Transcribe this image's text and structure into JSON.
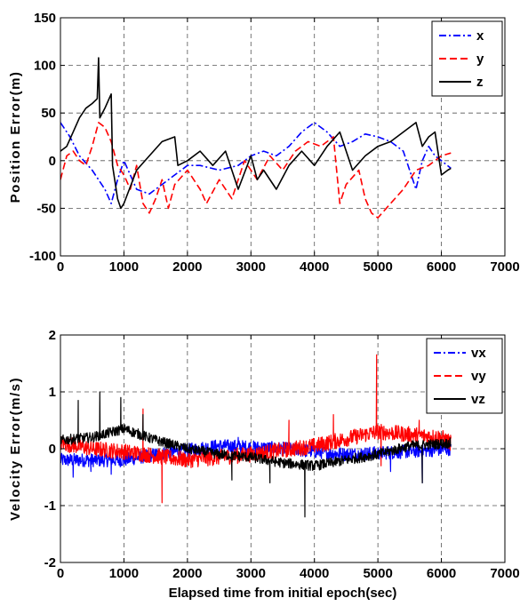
{
  "chart_data": [
    {
      "type": "line",
      "ylabel": "Position Error(m)",
      "xlabel": "",
      "xlim": [
        0,
        7000
      ],
      "ylim": [
        -100,
        150
      ],
      "xticks": [
        "0",
        "1000",
        "2000",
        "3000",
        "4000",
        "5000",
        "6000",
        "7000"
      ],
      "yticks": [
        "-100",
        "-50",
        "0",
        "50",
        "100",
        "150"
      ],
      "grid": true,
      "legend_position": "top-right",
      "series": [
        {
          "name": "x",
          "color": "#0000ff",
          "style": "dash-dot",
          "points": [
            [
              0,
              40
            ],
            [
              150,
              25
            ],
            [
              300,
              5
            ],
            [
              500,
              -10
            ],
            [
              700,
              -30
            ],
            [
              800,
              -45
            ],
            [
              900,
              -20
            ],
            [
              1000,
              0
            ],
            [
              1100,
              -15
            ],
            [
              1200,
              -30
            ],
            [
              1400,
              -35
            ],
            [
              1600,
              -25
            ],
            [
              1800,
              -15
            ],
            [
              2000,
              -5
            ],
            [
              2200,
              -5
            ],
            [
              2500,
              -10
            ],
            [
              2800,
              -5
            ],
            [
              3000,
              5
            ],
            [
              3200,
              10
            ],
            [
              3400,
              5
            ],
            [
              3600,
              15
            ],
            [
              3800,
              30
            ],
            [
              4000,
              40
            ],
            [
              4200,
              30
            ],
            [
              4400,
              15
            ],
            [
              4600,
              20
            ],
            [
              4800,
              28
            ],
            [
              5000,
              25
            ],
            [
              5200,
              20
            ],
            [
              5400,
              10
            ],
            [
              5600,
              -30
            ],
            [
              5700,
              0
            ],
            [
              5800,
              15
            ],
            [
              5900,
              5
            ],
            [
              6000,
              0
            ],
            [
              6150,
              -8
            ]
          ]
        },
        {
          "name": "y",
          "color": "#ff0000",
          "style": "dash",
          "points": [
            [
              0,
              -20
            ],
            [
              100,
              5
            ],
            [
              200,
              10
            ],
            [
              300,
              0
            ],
            [
              400,
              -5
            ],
            [
              500,
              15
            ],
            [
              600,
              40
            ],
            [
              700,
              35
            ],
            [
              800,
              20
            ],
            [
              900,
              -5
            ],
            [
              1000,
              -15
            ],
            [
              1100,
              -30
            ],
            [
              1200,
              -5
            ],
            [
              1300,
              -45
            ],
            [
              1400,
              -55
            ],
            [
              1500,
              -40
            ],
            [
              1600,
              -20
            ],
            [
              1700,
              -50
            ],
            [
              1800,
              -25
            ],
            [
              2000,
              -10
            ],
            [
              2200,
              -30
            ],
            [
              2300,
              -45
            ],
            [
              2500,
              -20
            ],
            [
              2700,
              -40
            ],
            [
              2900,
              0
            ],
            [
              3100,
              -20
            ],
            [
              3300,
              5
            ],
            [
              3500,
              -10
            ],
            [
              3700,
              10
            ],
            [
              3900,
              20
            ],
            [
              4100,
              15
            ],
            [
              4300,
              25
            ],
            [
              4400,
              -45
            ],
            [
              4500,
              -25
            ],
            [
              4700,
              -10
            ],
            [
              4800,
              -40
            ],
            [
              4900,
              -55
            ],
            [
              5000,
              -60
            ],
            [
              5200,
              -45
            ],
            [
              5400,
              -30
            ],
            [
              5600,
              -10
            ],
            [
              5800,
              -5
            ],
            [
              6000,
              5
            ],
            [
              6150,
              8
            ]
          ]
        },
        {
          "name": "z",
          "color": "#000000",
          "style": "solid",
          "points": [
            [
              0,
              10
            ],
            [
              100,
              15
            ],
            [
              200,
              30
            ],
            [
              300,
              45
            ],
            [
              400,
              55
            ],
            [
              500,
              60
            ],
            [
              580,
              65
            ],
            [
              600,
              108
            ],
            [
              620,
              45
            ],
            [
              700,
              55
            ],
            [
              800,
              70
            ],
            [
              820,
              -5
            ],
            [
              900,
              -40
            ],
            [
              950,
              -50
            ],
            [
              1000,
              -45
            ],
            [
              1200,
              -10
            ],
            [
              1400,
              5
            ],
            [
              1600,
              20
            ],
            [
              1800,
              25
            ],
            [
              1850,
              -5
            ],
            [
              2000,
              0
            ],
            [
              2200,
              10
            ],
            [
              2400,
              -5
            ],
            [
              2600,
              10
            ],
            [
              2800,
              -30
            ],
            [
              3000,
              5
            ],
            [
              3100,
              -20
            ],
            [
              3200,
              -10
            ],
            [
              3400,
              -30
            ],
            [
              3600,
              -5
            ],
            [
              3800,
              10
            ],
            [
              4000,
              -5
            ],
            [
              4200,
              15
            ],
            [
              4400,
              30
            ],
            [
              4600,
              -10
            ],
            [
              4800,
              5
            ],
            [
              5000,
              15
            ],
            [
              5200,
              20
            ],
            [
              5400,
              30
            ],
            [
              5600,
              40
            ],
            [
              5700,
              15
            ],
            [
              5800,
              25
            ],
            [
              5900,
              30
            ],
            [
              6000,
              -15
            ],
            [
              6100,
              -10
            ],
            [
              6150,
              -8
            ]
          ]
        }
      ]
    },
    {
      "type": "line",
      "ylabel": "Velocity Error(m/s)",
      "xlabel": "Elapsed time from initial epoch(sec)",
      "xlim": [
        0,
        7000
      ],
      "ylim": [
        -2,
        2
      ],
      "xticks": [
        "0",
        "1000",
        "2000",
        "3000",
        "4000",
        "5000",
        "6000",
        "7000"
      ],
      "yticks": [
        "-2",
        "-1",
        "0",
        "1",
        "2"
      ],
      "grid": true,
      "legend_position": "top-right",
      "series": [
        {
          "name": "vx",
          "color": "#0000ff",
          "style": "dash-dot",
          "trend": [
            [
              0,
              -0.2
            ],
            [
              1000,
              -0.2
            ],
            [
              1500,
              -0.1
            ],
            [
              2500,
              0.05
            ],
            [
              3500,
              0.0
            ],
            [
              4500,
              -0.1
            ],
            [
              5500,
              -0.05
            ],
            [
              6150,
              0.0
            ]
          ],
          "noise": 0.12,
          "spikes": [
            [
              200,
              -0.5
            ],
            [
              480,
              -0.4
            ],
            [
              800,
              -0.45
            ],
            [
              1600,
              -0.3
            ],
            [
              2800,
              0.2
            ],
            [
              5200,
              -0.4
            ],
            [
              5700,
              -0.6
            ]
          ]
        },
        {
          "name": "vy",
          "color": "#ff0000",
          "style": "dash",
          "trend": [
            [
              0,
              0.1
            ],
            [
              500,
              0.0
            ],
            [
              1000,
              -0.05
            ],
            [
              2000,
              -0.2
            ],
            [
              3000,
              -0.1
            ],
            [
              4000,
              0.05
            ],
            [
              5000,
              0.3
            ],
            [
              6000,
              0.2
            ],
            [
              6150,
              0.1
            ]
          ],
          "noise": 0.14,
          "spikes": [
            [
              1300,
              0.7
            ],
            [
              1600,
              -0.95
            ],
            [
              3600,
              0.5
            ],
            [
              4300,
              0.6
            ],
            [
              4980,
              1.65
            ],
            [
              5050,
              -0.3
            ],
            [
              5650,
              0.5
            ]
          ]
        },
        {
          "name": "vz",
          "color": "#000000",
          "style": "solid",
          "trend": [
            [
              0,
              0.15
            ],
            [
              500,
              0.2
            ],
            [
              1000,
              0.35
            ],
            [
              1500,
              0.15
            ],
            [
              2000,
              0.0
            ],
            [
              2500,
              -0.1
            ],
            [
              3000,
              -0.15
            ],
            [
              3500,
              -0.25
            ],
            [
              4000,
              -0.3
            ],
            [
              4500,
              -0.2
            ],
            [
              5000,
              -0.1
            ],
            [
              5500,
              0.05
            ],
            [
              6150,
              0.1
            ]
          ],
          "noise": 0.09,
          "spikes": [
            [
              280,
              0.85
            ],
            [
              620,
              1.0
            ],
            [
              950,
              0.9
            ],
            [
              1300,
              0.6
            ],
            [
              2700,
              -0.55
            ],
            [
              3300,
              -0.6
            ],
            [
              3850,
              -1.2
            ],
            [
              5700,
              -0.6
            ]
          ]
        }
      ]
    }
  ]
}
